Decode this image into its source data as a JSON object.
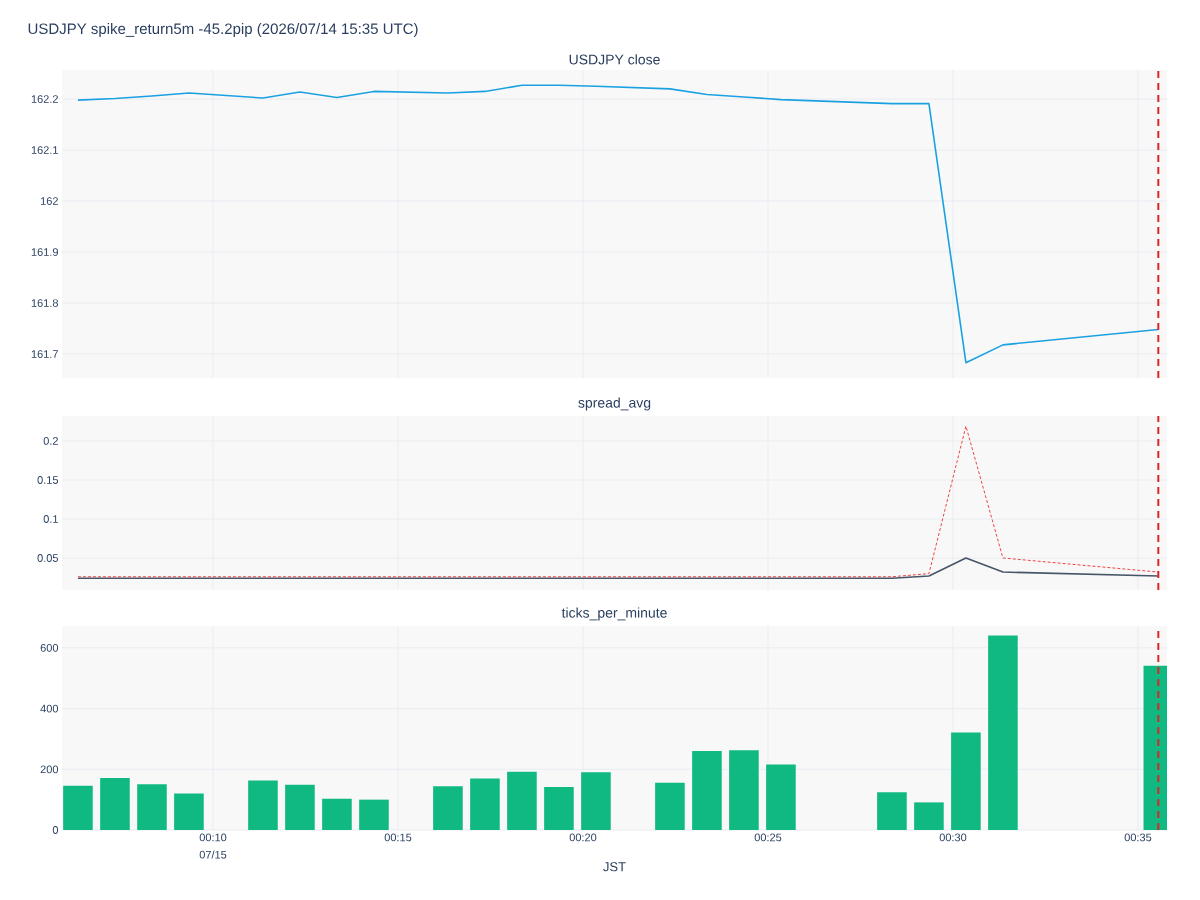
{
  "chart_data": [
    {
      "type": "line",
      "title": "USDJPY spike_return5m -45.2pip (2026/07/14 15:35 UTC)",
      "subtitle": "USDJPY close",
      "x": [
        0.10583,
        0.1225,
        0.13917,
        0.15583,
        0.18917,
        0.20583,
        0.2225,
        0.23917,
        0.2725,
        0.28917,
        0.30583,
        0.3225,
        0.33917,
        0.3725,
        0.38917,
        0.40583,
        0.4225,
        0.4725,
        0.48917,
        0.50583,
        0.5225,
        0.5925
      ],
      "series": [
        {
          "color": "#1ba1e2",
          "values": [
            162.198,
            162.201,
            162.206,
            162.212,
            162.202,
            162.214,
            162.203,
            162.215,
            162.212,
            162.215,
            162.227,
            162.227,
            162.225,
            162.22,
            162.209,
            162.204,
            162.199,
            162.191,
            162.191,
            161.683,
            161.718,
            161.748
          ]
        }
      ],
      "xlim": [
        0.09865,
        0.5964
      ],
      "ylim": [
        161.653,
        162.257
      ],
      "yticks": [
        161.7,
        161.8,
        161.9,
        162,
        162.1,
        162.2
      ],
      "xticks": [
        {
          "value": 0.16667,
          "label": null
        },
        {
          "value": 0.25,
          "label": null
        },
        {
          "value": 0.33333,
          "label": null
        },
        {
          "value": 0.41667,
          "label": null
        },
        {
          "value": 0.5,
          "label": null
        },
        {
          "value": 0.58333,
          "label": null
        }
      ],
      "tick_labels": "y",
      "grid": true,
      "line_style": "solid",
      "marker": "none",
      "ref_lines": [
        {
          "axis": "x",
          "value": 0.5925,
          "color": "#dc2626",
          "line_style": "dashed"
        }
      ]
    },
    {
      "type": "line",
      "title": "spread_avg",
      "x": [
        0.10583,
        0.1225,
        0.13917,
        0.15583,
        0.18917,
        0.20583,
        0.2225,
        0.23917,
        0.2725,
        0.28917,
        0.30583,
        0.3225,
        0.33917,
        0.3725,
        0.38917,
        0.40583,
        0.4225,
        0.4725,
        0.48917,
        0.50583,
        0.5225,
        0.5925
      ],
      "series": [
        {
          "color": "#475569",
          "line_style": "solid",
          "values": [
            0.024,
            0.024,
            0.024,
            0.024,
            0.024,
            0.024,
            0.024,
            0.024,
            0.024,
            0.024,
            0.024,
            0.024,
            0.024,
            0.024,
            0.024,
            0.024,
            0.024,
            0.024,
            0.027,
            0.05,
            0.032,
            0.027
          ]
        },
        {
          "color": "#ef4444",
          "line_style": "dashed",
          "values": [
            0.026,
            0.026,
            0.026,
            0.026,
            0.026,
            0.026,
            0.026,
            0.026,
            0.026,
            0.026,
            0.026,
            0.026,
            0.026,
            0.026,
            0.026,
            0.026,
            0.026,
            0.026,
            0.03,
            0.219,
            0.05,
            0.032
          ]
        }
      ],
      "xlim": [
        0.09865,
        0.5964
      ],
      "ylim": [
        0.009,
        0.232
      ],
      "yticks": [
        0.05,
        0.1,
        0.15,
        0.2
      ],
      "xticks": [
        {
          "value": 0.16667,
          "label": null
        },
        {
          "value": 0.25,
          "label": null
        },
        {
          "value": 0.33333,
          "label": null
        },
        {
          "value": 0.41667,
          "label": null
        },
        {
          "value": 0.5,
          "label": null
        },
        {
          "value": 0.58333,
          "label": null
        }
      ],
      "tick_labels": "y",
      "grid": true,
      "marker": "none",
      "ref_lines": [
        {
          "axis": "x",
          "value": 0.5925,
          "color": "#dc2626",
          "line_style": "dashed"
        }
      ]
    },
    {
      "type": "bar",
      "title": "ticks_per_minute",
      "xlabel": "JST",
      "annotations": [
        "07/15"
      ],
      "x": [
        0.10583,
        0.1225,
        0.13917,
        0.15583,
        0.18917,
        0.20583,
        0.2225,
        0.23917,
        0.2725,
        0.28917,
        0.30583,
        0.3225,
        0.33917,
        0.3725,
        0.38917,
        0.40583,
        0.4225,
        0.4725,
        0.48917,
        0.50583,
        0.5225,
        0.5925
      ],
      "values": [
        146,
        171,
        151,
        120,
        163,
        149,
        103,
        100,
        144,
        170,
        192,
        142,
        190,
        156,
        260,
        263,
        216,
        124,
        91,
        321,
        641,
        541
      ],
      "color": "#10b981",
      "xlim": [
        0.09865,
        0.5964
      ],
      "ylim": [
        0,
        672
      ],
      "yticks": [
        0,
        200,
        400,
        600
      ],
      "xticks": [
        {
          "value": 0.16667,
          "label": "00:10"
        },
        {
          "value": 0.25,
          "label": "00:15"
        },
        {
          "value": 0.33333,
          "label": "00:20"
        },
        {
          "value": 0.41667,
          "label": "00:25"
        },
        {
          "value": 0.5,
          "label": "00:30"
        },
        {
          "value": 0.58333,
          "label": "00:35"
        }
      ],
      "grid": true,
      "ref_lines": [
        {
          "axis": "x",
          "value": 0.5925,
          "color": "#dc2626",
          "line_style": "dashed"
        }
      ]
    }
  ]
}
